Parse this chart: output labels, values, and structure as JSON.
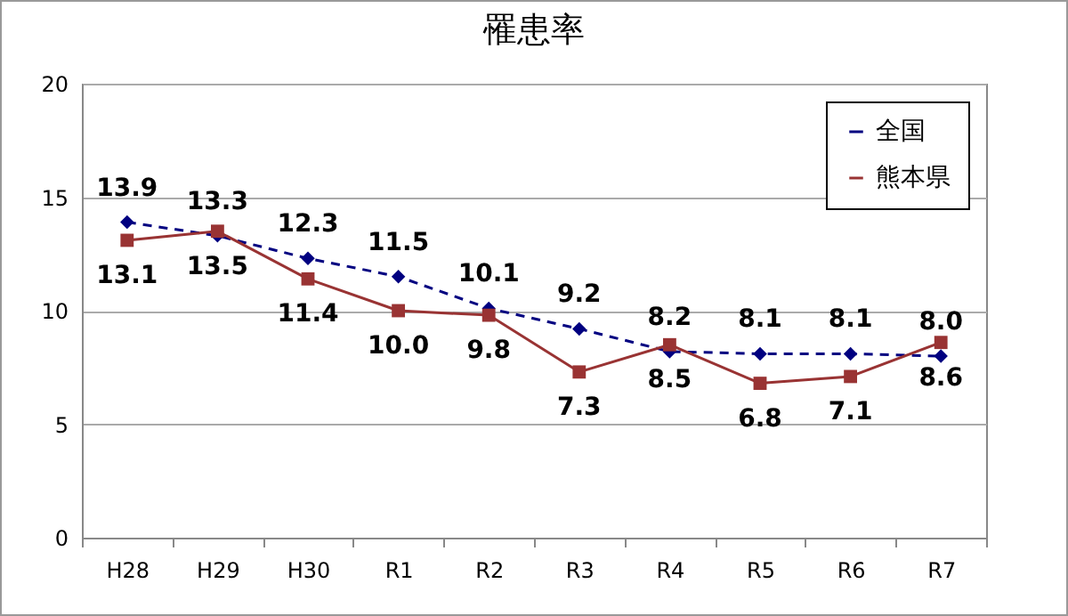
{
  "chart_data": {
    "type": "line",
    "title": "罹患率",
    "categories": [
      "H28",
      "H29",
      "H30",
      "R1",
      "R2",
      "R3",
      "R4",
      "R5",
      "R6",
      "R7"
    ],
    "series": [
      {
        "name": "全国",
        "color": "#000080",
        "line_style": "dashed",
        "marker": "diamond",
        "values": [
          13.9,
          13.3,
          12.3,
          11.5,
          10.1,
          9.2,
          8.2,
          8.1,
          8.1,
          8.0
        ],
        "value_labels": [
          "13.9",
          "13.3",
          "12.3",
          "11.5",
          "10.1",
          "9.2",
          "8.2",
          "8.1",
          "8.1",
          "8.0"
        ]
      },
      {
        "name": "熊本県",
        "color": "#993333",
        "line_style": "solid",
        "marker": "square",
        "values": [
          13.1,
          13.5,
          11.4,
          10.0,
          9.8,
          7.3,
          8.5,
          6.8,
          7.1,
          8.6
        ],
        "value_labels": [
          "13.1",
          "13.5",
          "11.4",
          "10.0",
          "9.8",
          "7.3",
          "8.5",
          "6.8",
          "7.1",
          "8.6"
        ]
      }
    ],
    "ylim": [
      0,
      20
    ],
    "yticks": [
      0,
      5,
      10,
      15,
      20
    ],
    "grid": "y",
    "legend": "top right"
  }
}
